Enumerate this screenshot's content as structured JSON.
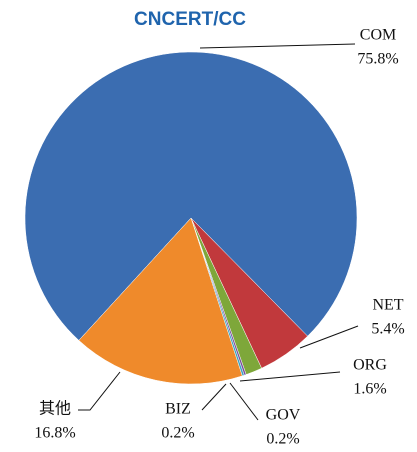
{
  "chart_data": {
    "type": "pie",
    "title": "CNCERT/CC",
    "categories": [
      "COM",
      "NET",
      "ORG",
      "GOV",
      "BIZ",
      "其他"
    ],
    "values": [
      75.8,
      5.4,
      1.6,
      0.2,
      0.2,
      16.8
    ],
    "value_labels": [
      "75.8%",
      "5.4%",
      "1.6%",
      "0.2%",
      "0.2%",
      "16.8%"
    ],
    "colors": [
      "#3b6db1",
      "#c1393c",
      "#7ea73a",
      "#7b519d",
      "#3aa3c2",
      "#ef8a2b"
    ]
  }
}
